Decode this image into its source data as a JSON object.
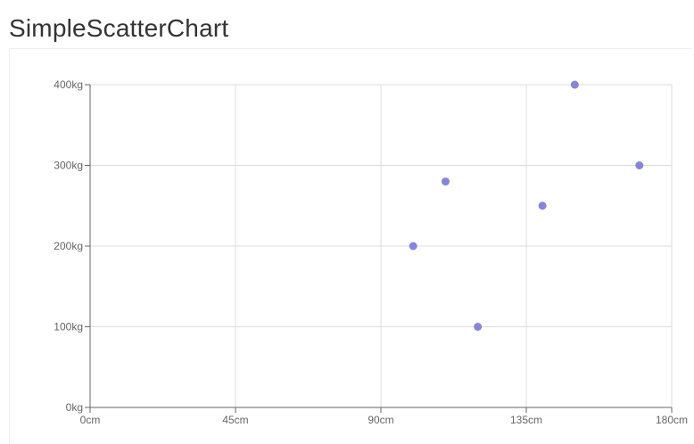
{
  "page": {
    "title": "SimpleScatterChart"
  },
  "chart_data": {
    "type": "scatter",
    "title": "SimpleScatterChart",
    "xlabel": "",
    "ylabel": "",
    "x_unit": "cm",
    "y_unit": "kg",
    "xlim": [
      0,
      180
    ],
    "ylim": [
      0,
      400
    ],
    "x_ticks": [
      0,
      45,
      90,
      135,
      180
    ],
    "y_ticks": [
      0,
      100,
      200,
      300,
      400
    ],
    "x_tick_labels": [
      "0cm",
      "45cm",
      "90cm",
      "135cm",
      "180cm"
    ],
    "y_tick_labels": [
      "0kg",
      "100kg",
      "200kg",
      "300kg",
      "400kg"
    ],
    "grid": true,
    "legend": "none",
    "series": [
      {
        "color": "#8884d8",
        "points": [
          {
            "x": 100,
            "y": 200
          },
          {
            "x": 110,
            "y": 280
          },
          {
            "x": 120,
            "y": 100
          },
          {
            "x": 140,
            "y": 250
          },
          {
            "x": 150,
            "y": 400
          },
          {
            "x": 170,
            "y": 300
          }
        ]
      }
    ]
  }
}
